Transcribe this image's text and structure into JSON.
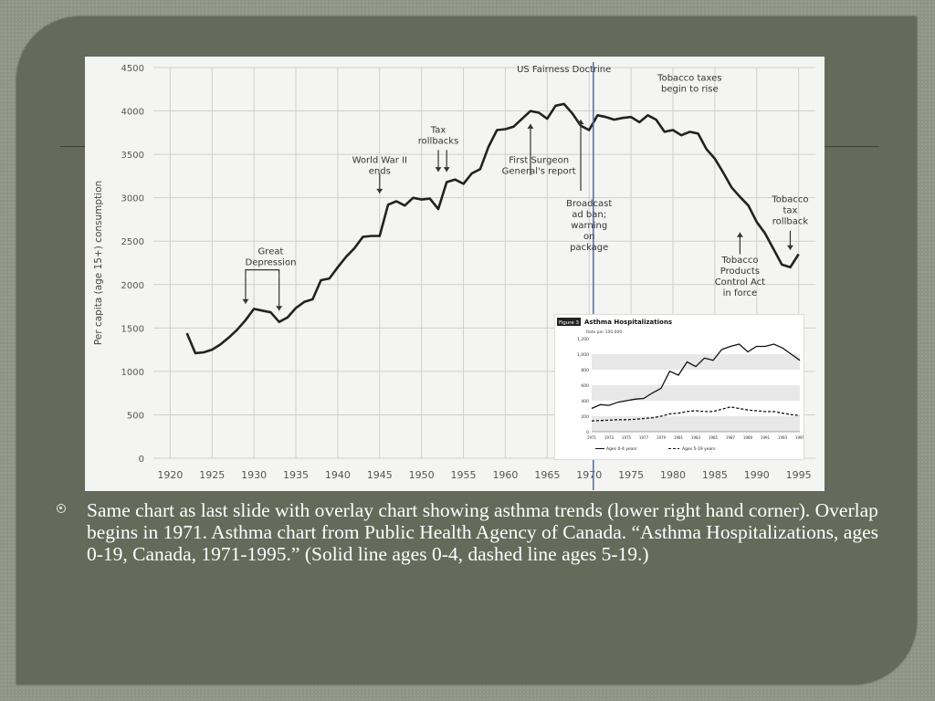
{
  "slide": {
    "bullet_text": "Same chart as last slide with overlay chart showing asthma trends (lower right hand corner). Overlap begins in 1971. Asthma chart from Public Health Agency of Canada. “Asthma Hospitalizations, ages 0-19, Canada, 1971-1995.” (Solid line ages 0-4, dashed line ages 5-19.)",
    "colors": {
      "panel": "#656a5b",
      "frame": "#8f9486",
      "text": "#ffffff",
      "marker_line": "#4a6fa5"
    }
  },
  "chart_data": [
    {
      "type": "line",
      "title": "",
      "ylabel": "Per capita (age 15+) consumption",
      "xlabel": "",
      "xlim": [
        1918,
        1997
      ],
      "ylim": [
        0,
        4500
      ],
      "x_ticks": [
        1920,
        1925,
        1930,
        1935,
        1940,
        1945,
        1950,
        1955,
        1960,
        1965,
        1970,
        1975,
        1980,
        1985,
        1990,
        1995
      ],
      "y_ticks": [
        0,
        500,
        1000,
        1500,
        2000,
        2500,
        3000,
        3500,
        4000,
        4500
      ],
      "grid": true,
      "vertical_marker_year": 1970.5,
      "series": [
        {
          "x": [
            1922,
            1923,
            1924,
            1925,
            1926,
            1927,
            1928,
            1929,
            1930,
            1931,
            1932,
            1933,
            1934,
            1935,
            1936,
            1937,
            1938,
            1939,
            1940,
            1941,
            1942,
            1943,
            1944,
            1945,
            1946,
            1947,
            1948,
            1949,
            1950,
            1951,
            1952,
            1953,
            1954,
            1955,
            1956,
            1957,
            1958,
            1959,
            1960,
            1961,
            1962,
            1963,
            1964,
            1965,
            1966,
            1967,
            1968,
            1969,
            1970,
            1971,
            1972,
            1973,
            1974,
            1975,
            1976,
            1977,
            1978,
            1979,
            1980,
            1981,
            1982,
            1983,
            1984,
            1985,
            1986,
            1987,
            1988,
            1989,
            1990,
            1991,
            1992,
            1993,
            1994,
            1995
          ],
          "y": [
            1440,
            1210,
            1220,
            1250,
            1310,
            1390,
            1480,
            1590,
            1720,
            1700,
            1680,
            1570,
            1620,
            1730,
            1800,
            1830,
            2050,
            2070,
            2200,
            2320,
            2420,
            2550,
            2560,
            2560,
            2920,
            2960,
            2910,
            3000,
            2980,
            2990,
            2870,
            3180,
            3210,
            3160,
            3280,
            3330,
            3590,
            3780,
            3790,
            3820,
            3910,
            4000,
            3980,
            3910,
            4060,
            4080,
            3970,
            3830,
            3780,
            3950,
            3930,
            3900,
            3920,
            3930,
            3870,
            3950,
            3900,
            3760,
            3780,
            3720,
            3760,
            3740,
            3560,
            3450,
            3290,
            3120,
            3010,
            2910,
            2720,
            2590,
            2410,
            2230,
            2200,
            2350
          ]
        }
      ],
      "annotations": [
        {
          "text": "US Fairness Doctrine",
          "x": 1967,
          "y": 4450
        },
        {
          "text": "Tobacco taxes begin to rise",
          "x": 1982,
          "y": 4350
        },
        {
          "text": "Tax rollbacks",
          "x": 1952,
          "y": 3750
        },
        {
          "text": "First Surgeon General's report",
          "x": 1964,
          "y": 3400
        },
        {
          "text": "World War II ends",
          "x": 1945,
          "y": 3400
        },
        {
          "text": "Broadcast ad ban; warning on package",
          "x": 1970,
          "y": 2900
        },
        {
          "text": "Tobacco tax rollback",
          "x": 1994,
          "y": 2950
        },
        {
          "text": "Great Depression",
          "x": 1932,
          "y": 2350
        },
        {
          "text": "Tobacco Products Control Act in force",
          "x": 1988,
          "y": 2250
        }
      ]
    },
    {
      "type": "line",
      "title": "Asthma Hospitalizations",
      "figure_label": "Figure 3",
      "ylabel": "Rate per 100,000",
      "xlim": [
        1971,
        1995
      ],
      "ylim": [
        0,
        1200
      ],
      "x_ticks": [
        1971,
        1973,
        1975,
        1977,
        1979,
        1981,
        1983,
        1985,
        1987,
        1989,
        1991,
        1993,
        1995
      ],
      "y_ticks": [
        0,
        200,
        400,
        600,
        800,
        1000,
        1200
      ],
      "grid": true,
      "legend": [
        "Ages 0-4 years",
        "Ages 5-19 years"
      ],
      "legend_placement": "bottom",
      "series": [
        {
          "name": "Ages 0-4 years",
          "style": "solid",
          "x": [
            1971,
            1972,
            1973,
            1974,
            1975,
            1976,
            1977,
            1978,
            1979,
            1980,
            1981,
            1982,
            1983,
            1984,
            1985,
            1986,
            1987,
            1988,
            1989,
            1990,
            1991,
            1992,
            1993,
            1994,
            1995
          ],
          "y": [
            300,
            350,
            340,
            380,
            400,
            420,
            430,
            500,
            560,
            780,
            730,
            900,
            840,
            950,
            920,
            1060,
            1100,
            1130,
            1030,
            1100,
            1100,
            1130,
            1080,
            1000,
            920
          ]
        },
        {
          "name": "Ages 5-19 years",
          "style": "dashed",
          "x": [
            1971,
            1972,
            1973,
            1974,
            1975,
            1976,
            1977,
            1978,
            1979,
            1980,
            1981,
            1982,
            1983,
            1984,
            1985,
            1986,
            1987,
            1988,
            1989,
            1990,
            1991,
            1992,
            1993,
            1994,
            1995
          ],
          "y": [
            140,
            145,
            150,
            155,
            155,
            160,
            170,
            180,
            200,
            230,
            240,
            260,
            270,
            260,
            260,
            290,
            320,
            300,
            280,
            270,
            260,
            260,
            240,
            220,
            210
          ]
        }
      ]
    }
  ]
}
